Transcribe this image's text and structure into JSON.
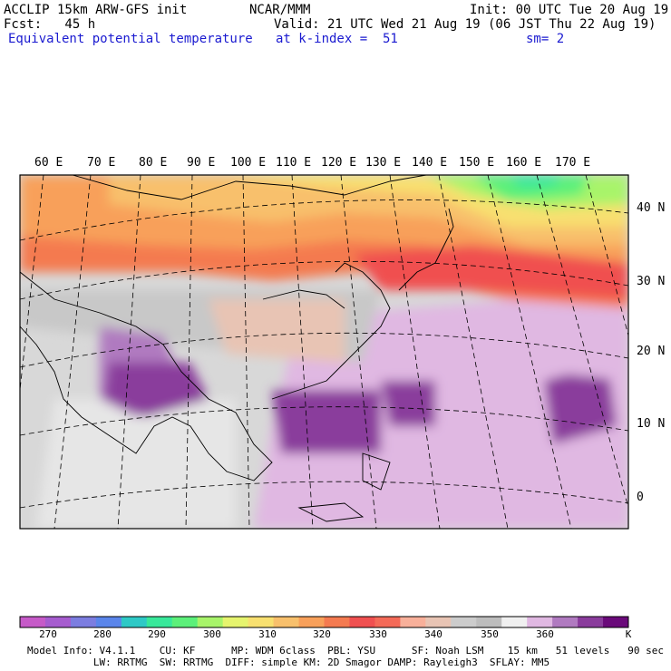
{
  "header": {
    "model_line": "ACCLIP 15km ARW-GFS init",
    "org": "NCAR/MMM",
    "init": "Init: 00 UTC Tue 20 Aug 19",
    "fcst": "Fcst:   45 h",
    "valid": "Valid: 21 UTC Wed 21 Aug 19 (06 JST Thu 22 Aug 19)",
    "field": "Equivalent potential temperature",
    "level": "at k-index =  51",
    "smooth": "sm= 2"
  },
  "map": {
    "lon_labels": [
      "60 E",
      "70 E",
      "80 E",
      "90 E",
      "100 E",
      "110 E",
      "120 E",
      "130 E",
      "140 E",
      "150 E",
      "160 E",
      "170 E"
    ],
    "lat_labels": [
      "40 N",
      "30 N",
      "20 N",
      "10 N",
      "0"
    ]
  },
  "colorbar": {
    "unit": "K",
    "ticks": [
      "270",
      "280",
      "290",
      "300",
      "310",
      "320",
      "330",
      "340",
      "350",
      "360"
    ],
    "colors": [
      "#c65ac8",
      "#a65ccf",
      "#7c7de0",
      "#5a85ea",
      "#2ec9c6",
      "#38e89a",
      "#5cf07a",
      "#a8f46a",
      "#e6f46e",
      "#f8e070",
      "#f8c06c",
      "#f8a05a",
      "#f47a50",
      "#f05050",
      "#f46a58",
      "#f8b09a",
      "#e8c4b4",
      "#cccccc",
      "#bdbdbd",
      "#f0f0f0",
      "#e0b8e2",
      "#b07ac0",
      "#8a3c9c",
      "#6a0a7a"
    ]
  },
  "footer": {
    "line1": "Model Info: V4.1.1    CU: KF      MP: WDM 6class  PBL: YSU      SF: Noah LSM    15 km   51 levels   90 sec",
    "line2": "           LW: RRTMG  SW: RRTMG  DIFF: simple KM: 2D Smagor DAMP: Rayleigh3  SFLAY: MM5"
  }
}
